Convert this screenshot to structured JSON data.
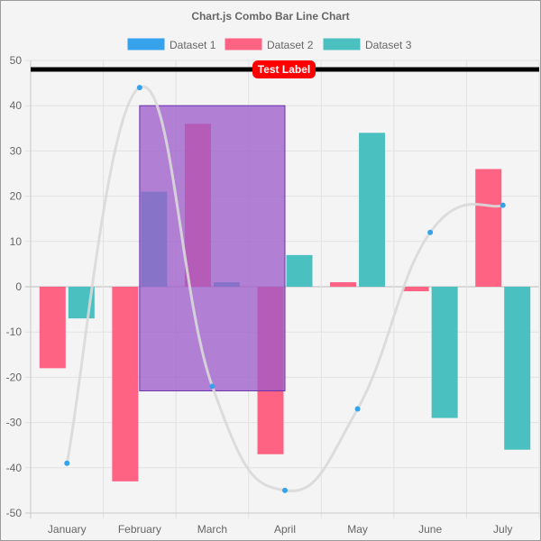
{
  "chart_data": {
    "type": "bar",
    "title": "Chart.js Combo Bar Line Chart",
    "categories": [
      "January",
      "February",
      "March",
      "April",
      "May",
      "June",
      "July"
    ],
    "ylim": [
      -50,
      50
    ],
    "yticks": [
      50,
      40,
      30,
      20,
      10,
      0,
      -10,
      -20,
      -30,
      -40,
      -50
    ],
    "grid": true,
    "legend_position": "top",
    "series": [
      {
        "name": "Dataset 1",
        "type": "line",
        "color": "#36a2eb",
        "line_color": "#d9d9d9",
        "values": [
          -39,
          44,
          -22,
          -45,
          -27,
          12,
          18
        ]
      },
      {
        "name": "Dataset 2",
        "type": "bar",
        "color": "#ff6384",
        "values": [
          -18,
          -43,
          36,
          -37,
          1,
          -1,
          26
        ]
      },
      {
        "name": "Dataset 3",
        "type": "bar",
        "color": "#4bc0c0",
        "values": [
          -7,
          21,
          1,
          7,
          34,
          -29,
          -36
        ]
      }
    ],
    "annotations": {
      "horizontal_line": {
        "value": 48,
        "label": "Test Label",
        "line_color": "#000000",
        "label_color": "#ff0000"
      },
      "box": {
        "x_from": "February",
        "x_to": "April",
        "y_from": -23,
        "y_to": 40,
        "fill": "#9b59c9",
        "border": "#6a2fb0"
      }
    }
  }
}
